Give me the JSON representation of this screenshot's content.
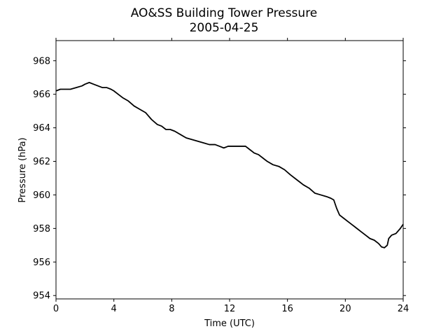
{
  "chart_data": {
    "type": "line",
    "title": "AO&SS Building Tower Pressure",
    "subtitle": "2005-04-25",
    "xlabel": "Time (UTC)",
    "ylabel": "Pressure (hPa)",
    "xlim": [
      0,
      24
    ],
    "ylim": [
      953.8,
      969.2
    ],
    "xticks": [
      0,
      4,
      8,
      12,
      16,
      20,
      24
    ],
    "yticks": [
      954,
      956,
      958,
      960,
      962,
      964,
      966,
      968
    ],
    "grid": false,
    "line_color": "#000000",
    "series": [
      {
        "x": [
          0,
          0.3,
          0.6,
          1.0,
          1.4,
          1.8,
          2.0,
          2.3,
          2.6,
          2.9,
          3.2,
          3.5,
          3.8,
          4.0,
          4.3,
          4.6,
          5.0,
          5.4,
          5.8,
          6.2,
          6.6,
          7.0,
          7.3,
          7.6,
          7.9,
          8.2,
          8.6,
          9.0,
          9.4,
          9.8,
          10.2,
          10.6,
          11.0,
          11.3,
          11.6,
          11.9,
          12.2,
          12.5,
          12.8,
          13.1,
          13.4,
          13.7,
          14.0,
          14.3,
          14.6,
          15.0,
          15.4,
          15.8,
          16.2,
          16.5,
          16.8,
          17.1,
          17.5,
          17.9,
          18.3,
          18.7,
          19.0,
          19.2,
          19.4,
          19.6,
          19.9,
          20.2,
          20.5,
          20.8,
          21.1,
          21.4,
          21.7,
          22.0,
          22.3,
          22.5,
          22.7,
          22.9,
          23.0,
          23.2,
          23.5,
          23.8,
          24.0
        ],
        "values": [
          966.2,
          966.3,
          966.3,
          966.3,
          966.4,
          966.5,
          966.6,
          966.7,
          966.6,
          966.5,
          966.4,
          966.4,
          966.3,
          966.2,
          966.0,
          965.8,
          965.6,
          965.3,
          965.1,
          964.9,
          964.5,
          964.2,
          964.1,
          963.9,
          963.9,
          963.8,
          963.6,
          963.4,
          963.3,
          963.2,
          963.1,
          963.0,
          963.0,
          962.9,
          962.8,
          962.9,
          962.9,
          962.9,
          962.9,
          962.9,
          962.7,
          962.5,
          962.4,
          962.2,
          962.0,
          961.8,
          961.7,
          961.5,
          961.2,
          961.0,
          960.8,
          960.6,
          960.4,
          960.1,
          960.0,
          959.9,
          959.8,
          959.7,
          959.2,
          958.8,
          958.6,
          958.4,
          958.2,
          958.0,
          957.8,
          957.6,
          957.4,
          957.3,
          957.1,
          956.9,
          956.85,
          957.0,
          957.4,
          957.6,
          957.7,
          958.0,
          958.25
        ]
      }
    ]
  }
}
